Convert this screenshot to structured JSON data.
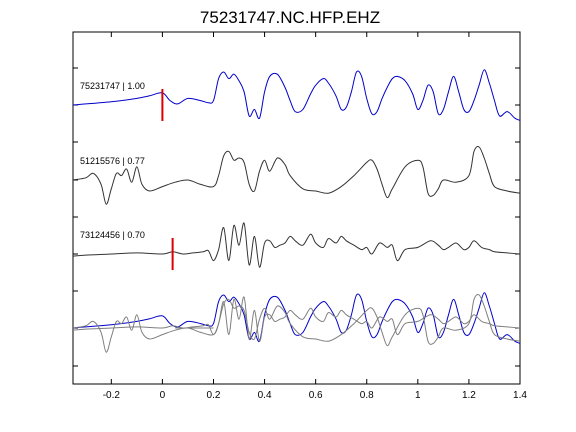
{
  "chart_data": {
    "type": "line",
    "title": "75231747.NC.HFP.EHZ",
    "xlabel": "",
    "ylabel": "",
    "xlim": [
      -0.35,
      1.4
    ],
    "xticks": [
      -0.2,
      0,
      0.2,
      0.4,
      0.6,
      0.8,
      1,
      1.2,
      1.4
    ],
    "xtick_labels": [
      "-0.2",
      "0",
      "0.2",
      "0.4",
      "0.6",
      "0.8",
      "1",
      "1.2",
      "1.4"
    ],
    "grid": false,
    "legend": "none",
    "colors": {
      "blue": "#0000cc",
      "dark": "#333333",
      "gray": "#7f7f7f",
      "pick": "#dd0000"
    },
    "traces": [
      {
        "label": "75231747 | 1.00",
        "color": "#0000cc",
        "row": 0,
        "pick_x": 0.0
      },
      {
        "label": "51215576 | 0.77",
        "color": "#333333",
        "row": 1
      },
      {
        "label": "73124456 | 0.70",
        "color": "#333333",
        "row": 2,
        "pick_x": 0.04
      }
    ],
    "series": [
      {
        "name": "75231747 | 1.00",
        "x": [
          -0.35,
          -0.3,
          -0.2,
          -0.1,
          -0.05,
          0.0,
          0.03,
          0.06,
          0.1,
          0.15,
          0.18,
          0.2,
          0.22,
          0.24,
          0.26,
          0.28,
          0.3,
          0.32,
          0.34,
          0.36,
          0.38,
          0.4,
          0.42,
          0.45,
          0.48,
          0.5,
          0.52,
          0.55,
          0.58,
          0.6,
          0.63,
          0.65,
          0.68,
          0.7,
          0.72,
          0.74,
          0.76,
          0.78,
          0.8,
          0.82,
          0.84,
          0.86,
          0.88,
          0.9,
          0.92,
          0.95,
          0.98,
          1.0,
          1.02,
          1.04,
          1.06,
          1.08,
          1.1,
          1.12,
          1.14,
          1.16,
          1.18,
          1.2,
          1.22,
          1.24,
          1.26,
          1.28,
          1.3,
          1.32,
          1.35,
          1.38,
          1.4
        ],
        "y": [
          0,
          0.05,
          0.15,
          0.3,
          0.42,
          0.55,
          0.2,
          0.05,
          0.3,
          0.2,
          0.1,
          0.2,
          1.2,
          1.5,
          1.2,
          1.4,
          1.1,
          0.6,
          -0.5,
          -0.2,
          -0.6,
          0.6,
          1.3,
          1.4,
          0.8,
          0.2,
          -0.3,
          -0.2,
          0.5,
          0.9,
          1.2,
          1.0,
          0.4,
          -0.2,
          -0.1,
          0.6,
          1.5,
          1.3,
          0.3,
          -0.4,
          -0.3,
          0.3,
          0.8,
          1.2,
          1.3,
          1.1,
          0.5,
          -0.2,
          0.2,
          0.9,
          0.6,
          -0.4,
          -0.2,
          0.6,
          1.3,
          0.6,
          -0.2,
          -0.3,
          0.2,
          0.9,
          1.6,
          1.0,
          0.2,
          -0.5,
          -0.3,
          -0.6,
          -0.7
        ]
      },
      {
        "name": "51215576 | 0.77",
        "x": [
          -0.35,
          -0.3,
          -0.27,
          -0.24,
          -0.22,
          -0.2,
          -0.18,
          -0.16,
          -0.14,
          -0.12,
          -0.1,
          -0.08,
          -0.05,
          0.0,
          0.05,
          0.1,
          0.15,
          0.2,
          0.22,
          0.24,
          0.26,
          0.28,
          0.3,
          0.32,
          0.34,
          0.36,
          0.38,
          0.4,
          0.42,
          0.45,
          0.48,
          0.5,
          0.55,
          0.6,
          0.65,
          0.7,
          0.75,
          0.8,
          0.82,
          0.84,
          0.86,
          0.88,
          0.9,
          0.95,
          1.0,
          1.02,
          1.04,
          1.06,
          1.08,
          1.1,
          1.15,
          1.2,
          1.22,
          1.24,
          1.26,
          1.28,
          1.3,
          1.35,
          1.4
        ],
        "y": [
          0,
          0.1,
          0.3,
          -0.2,
          -1.1,
          -0.4,
          0.3,
          0.2,
          0.5,
          -0.1,
          0.6,
          -0.2,
          -0.5,
          -0.3,
          -0.1,
          0.0,
          -0.2,
          -0.3,
          0.2,
          1.1,
          1.3,
          0.9,
          1.0,
          0.8,
          -0.2,
          -0.5,
          0.4,
          0.9,
          0.4,
          1.0,
          0.7,
          0.2,
          -0.4,
          -0.5,
          -0.6,
          -0.3,
          0.2,
          0.8,
          0.9,
          0.5,
          -0.2,
          -0.8,
          -0.4,
          0.6,
          0.9,
          0.6,
          -0.6,
          -0.7,
          -0.4,
          0.0,
          -0.1,
          0.2,
          1.3,
          1.5,
          1.0,
          0.3,
          -0.3,
          -0.5,
          -0.6
        ]
      },
      {
        "name": "73124456 | 0.70",
        "x": [
          -0.35,
          -0.3,
          -0.2,
          -0.1,
          0.0,
          0.04,
          0.08,
          0.12,
          0.16,
          0.18,
          0.2,
          0.22,
          0.24,
          0.26,
          0.28,
          0.3,
          0.32,
          0.34,
          0.36,
          0.38,
          0.4,
          0.42,
          0.44,
          0.46,
          0.48,
          0.5,
          0.52,
          0.55,
          0.58,
          0.6,
          0.63,
          0.65,
          0.68,
          0.7,
          0.72,
          0.75,
          0.78,
          0.8,
          0.82,
          0.85,
          0.88,
          0.9,
          0.92,
          0.95,
          1.0,
          1.05,
          1.08,
          1.1,
          1.12,
          1.15,
          1.18,
          1.2,
          1.22,
          1.25,
          1.28,
          1.3,
          1.35,
          1.4
        ],
        "y": [
          -0.1,
          -0.05,
          0.0,
          0.05,
          0.0,
          0.1,
          0.0,
          0.05,
          0.1,
          0.15,
          -0.3,
          0.2,
          1.2,
          -0.3,
          1.3,
          0.4,
          1.4,
          -0.5,
          0.8,
          -0.6,
          0.5,
          0.6,
          0.3,
          0.4,
          0.5,
          0.8,
          0.6,
          0.4,
          0.9,
          0.5,
          0.3,
          0.7,
          0.5,
          0.8,
          0.6,
          0.4,
          0.2,
          0.3,
          0.0,
          0.5,
          0.3,
          0.4,
          -0.3,
          0.2,
          0.3,
          0.6,
          0.4,
          0.2,
          0.3,
          0.5,
          0.2,
          0.3,
          0.6,
          0.3,
          0.2,
          0.1,
          0.05,
          0.0
        ]
      }
    ]
  }
}
